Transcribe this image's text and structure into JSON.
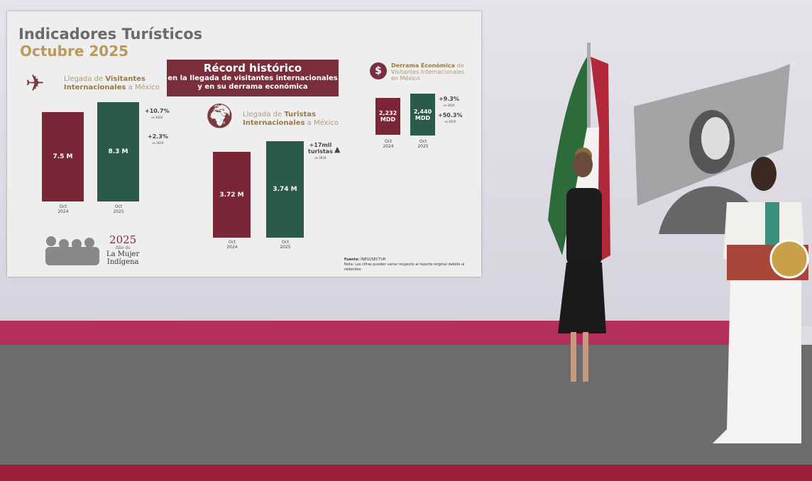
{
  "slide": {
    "title": "Indicadores Turísticos",
    "subtitle": "Octubre 2025",
    "banner": {
      "headline": "Récord histórico",
      "line1": "en la llegada de visitantes internacionales",
      "line2": "y en su derrama económica"
    },
    "visitors": {
      "label_a": "Llegada de ",
      "label_b": "Visitantes",
      "label_c": "Internacionales",
      "label_d": " a México",
      "bars": [
        {
          "period": [
            "Oct",
            "2024"
          ],
          "value_label": "7.5 M",
          "value": 7.5
        },
        {
          "period": [
            "Oct",
            "2025"
          ],
          "value_label": "8.3 M",
          "value": 8.3
        }
      ],
      "changes": [
        {
          "pct": "+10.7%",
          "vs": "vs 2024"
        },
        {
          "pct": "+2.3%",
          "vs": "vs 2019"
        }
      ]
    },
    "tourists": {
      "label_a": "Llegada de ",
      "label_b": "Turistas",
      "label_c": "Internacionales",
      "label_d": " a México",
      "bars": [
        {
          "period": [
            "Oct",
            "2024"
          ],
          "value_label": "3.72 M",
          "value": 3.72
        },
        {
          "period": [
            "Oct",
            "2025"
          ],
          "value_label": "3.74 M",
          "value": 3.74
        }
      ],
      "change": {
        "line1": "+17mil",
        "line2": "turistas",
        "vs": "vs 2024"
      }
    },
    "spending": {
      "label_a": "Derrama Económica",
      "label_b": " de",
      "label_c": "Visitantes Internacionales",
      "label_d": "en México",
      "bars": [
        {
          "period": [
            "Oct",
            "2024"
          ],
          "value_label": "2,232",
          "unit": "MDD",
          "value": 2232
        },
        {
          "period": [
            "Oct",
            "2025"
          ],
          "value_label": "2,440",
          "unit": "MDD",
          "value": 2440
        }
      ],
      "changes": [
        {
          "pct": "+9.3%",
          "vs": "vs 2024"
        },
        {
          "pct": "+50.3%",
          "vs": "vs 2019"
        }
      ]
    },
    "logo": {
      "year": "2025",
      "line1": "Año de",
      "line2": "La Mujer",
      "line3": "Indígena"
    },
    "source_label": "Fuente:",
    "source": "INEGI/SECTUR",
    "note": "Nota: Las cifras pueden variar respecto al reporte original debido al redondeo"
  },
  "colors": {
    "bar_2024": "#7a2636",
    "bar_2025": "#2b5a48",
    "accent_gold": "#b89a5e",
    "stage_stripe": "#b3305d"
  }
}
